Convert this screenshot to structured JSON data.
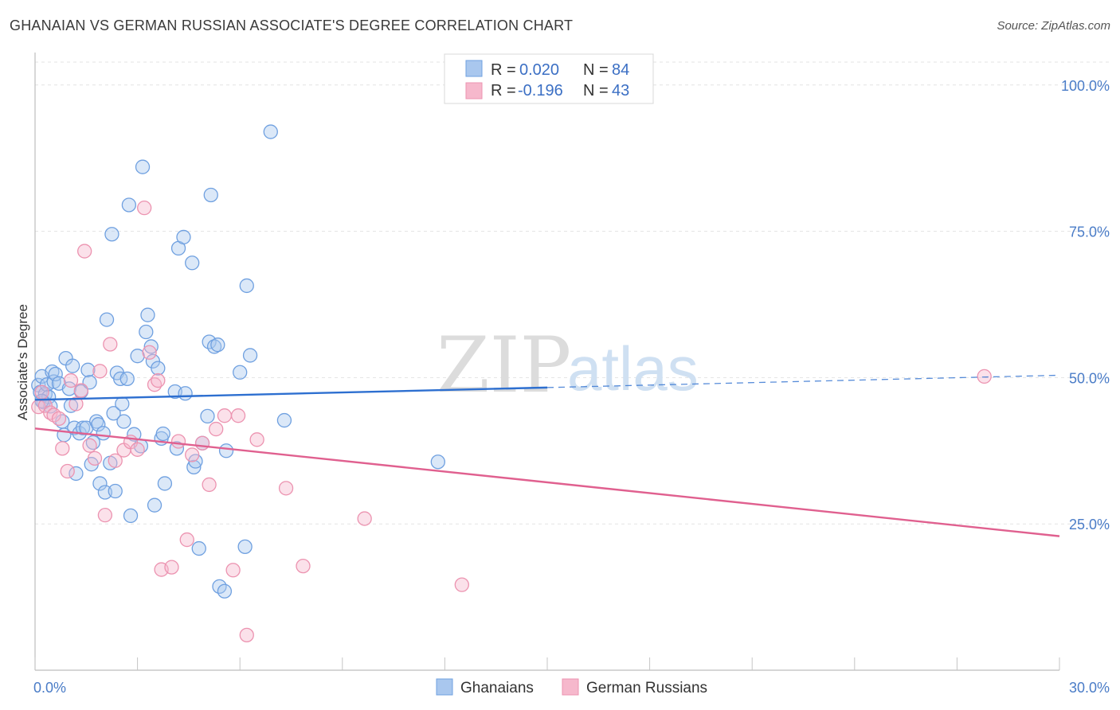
{
  "title": "GHANAIAN VS GERMAN RUSSIAN ASSOCIATE'S DEGREE CORRELATION CHART",
  "source": "Source: ZipAtlas.com",
  "watermark": {
    "zip": "ZIP",
    "atlas": "atlas"
  },
  "legend": {
    "rows": [
      {
        "r_label": "R =",
        "r_value": "0.020",
        "n_label": "N =",
        "n_value": "84",
        "color": "#a9c7ee"
      },
      {
        "r_label": "R =",
        "r_value": "-0.196",
        "n_label": "N =",
        "n_value": "43",
        "color": "#f6b8cc"
      }
    ]
  },
  "bottom_legend": [
    {
      "label": "Ghanaians",
      "color": "#a9c7ee"
    },
    {
      "label": "German Russians",
      "color": "#f6b8cc"
    }
  ],
  "chart_data": {
    "type": "scatter",
    "ylabel": "Associate's Degree",
    "xlim": [
      0,
      30
    ],
    "ylim": [
      0,
      105
    ],
    "x_tick_labels": [
      {
        "value": 0,
        "label": "0.0%"
      },
      {
        "value": 30,
        "label": "30.0%"
      }
    ],
    "y_tick_labels": [
      {
        "value": 25,
        "label": "25.0%"
      },
      {
        "value": 50,
        "label": "50.0%"
      },
      {
        "value": 75,
        "label": "75.0%"
      },
      {
        "value": 100,
        "label": "100.0%"
      }
    ],
    "grid": true,
    "legend_position": "top-center",
    "series": [
      {
        "name": "Ghanaians",
        "color": "#6fa0e0",
        "fill": "#a9c7ee",
        "trend": {
          "x0": 0,
          "y0": 46.2,
          "x1": 15,
          "y1": 48.3,
          "dash_to_x": 30,
          "dash_to_y": 50.4,
          "color": "#2d6fd0"
        },
        "points": [
          [
            0.1,
            48.7
          ],
          [
            0.15,
            47.5
          ],
          [
            0.2,
            50.2
          ],
          [
            0.25,
            45.8
          ],
          [
            0.3,
            47.2
          ],
          [
            0.35,
            48.8
          ],
          [
            0.4,
            46.7
          ],
          [
            0.45,
            45.1
          ],
          [
            0.5,
            51.0
          ],
          [
            0.55,
            49.3
          ],
          [
            0.6,
            50.6
          ],
          [
            0.7,
            49.0
          ],
          [
            0.8,
            42.5
          ],
          [
            0.85,
            40.2
          ],
          [
            0.9,
            53.3
          ],
          [
            1.0,
            48.1
          ],
          [
            1.05,
            45.2
          ],
          [
            1.1,
            52.0
          ],
          [
            1.15,
            41.4
          ],
          [
            1.2,
            33.6
          ],
          [
            1.3,
            40.5
          ],
          [
            1.35,
            47.6
          ],
          [
            1.4,
            41.4
          ],
          [
            1.5,
            41.4
          ],
          [
            1.55,
            51.3
          ],
          [
            1.6,
            49.2
          ],
          [
            1.65,
            35.2
          ],
          [
            1.7,
            38.9
          ],
          [
            1.8,
            42.5
          ],
          [
            1.85,
            42.0
          ],
          [
            1.9,
            31.9
          ],
          [
            2.0,
            40.5
          ],
          [
            2.05,
            30.4
          ],
          [
            2.1,
            59.9
          ],
          [
            2.2,
            35.4
          ],
          [
            2.25,
            74.5
          ],
          [
            2.3,
            43.9
          ],
          [
            2.35,
            30.6
          ],
          [
            2.4,
            50.8
          ],
          [
            2.5,
            49.8
          ],
          [
            2.55,
            45.5
          ],
          [
            2.6,
            42.5
          ],
          [
            2.7,
            49.8
          ],
          [
            2.75,
            79.5
          ],
          [
            2.8,
            26.4
          ],
          [
            2.9,
            40.3
          ],
          [
            3.0,
            53.7
          ],
          [
            3.1,
            38.3
          ],
          [
            3.15,
            86.0
          ],
          [
            3.25,
            57.8
          ],
          [
            3.3,
            60.7
          ],
          [
            3.4,
            55.3
          ],
          [
            3.45,
            52.8
          ],
          [
            3.5,
            28.2
          ],
          [
            3.6,
            51.6
          ],
          [
            3.7,
            39.6
          ],
          [
            3.75,
            40.4
          ],
          [
            3.8,
            31.9
          ],
          [
            4.1,
            47.6
          ],
          [
            4.15,
            37.9
          ],
          [
            4.2,
            72.1
          ],
          [
            4.35,
            74.0
          ],
          [
            4.4,
            47.3
          ],
          [
            4.6,
            69.6
          ],
          [
            4.65,
            34.7
          ],
          [
            4.7,
            35.7
          ],
          [
            4.8,
            20.8
          ],
          [
            4.9,
            38.8
          ],
          [
            5.05,
            43.4
          ],
          [
            5.1,
            56.1
          ],
          [
            5.15,
            81.2
          ],
          [
            5.25,
            55.3
          ],
          [
            5.35,
            55.6
          ],
          [
            5.4,
            14.3
          ],
          [
            5.55,
            13.5
          ],
          [
            5.6,
            37.5
          ],
          [
            6.0,
            50.9
          ],
          [
            6.15,
            21.1
          ],
          [
            6.2,
            65.7
          ],
          [
            6.3,
            53.8
          ],
          [
            6.9,
            92.0
          ],
          [
            7.3,
            42.7
          ],
          [
            11.8,
            35.6
          ],
          [
            0.2,
            46.0
          ]
        ]
      },
      {
        "name": "German Russians",
        "color": "#ec93b0",
        "fill": "#f6b8cc",
        "trend": {
          "x0": 0,
          "y0": 41.3,
          "x1": 30,
          "y1": 22.9,
          "color": "#e0608f"
        },
        "points": [
          [
            0.1,
            45.0
          ],
          [
            0.2,
            47.5
          ],
          [
            0.3,
            45.2
          ],
          [
            0.45,
            44.0
          ],
          [
            0.55,
            43.6
          ],
          [
            0.7,
            43.0
          ],
          [
            0.8,
            37.9
          ],
          [
            0.95,
            34.0
          ],
          [
            1.05,
            49.5
          ],
          [
            1.2,
            45.5
          ],
          [
            1.35,
            47.8
          ],
          [
            1.45,
            71.6
          ],
          [
            1.6,
            38.4
          ],
          [
            1.75,
            36.2
          ],
          [
            1.9,
            51.1
          ],
          [
            2.05,
            26.5
          ],
          [
            2.2,
            55.7
          ],
          [
            2.35,
            35.8
          ],
          [
            2.6,
            37.6
          ],
          [
            2.8,
            39.0
          ],
          [
            3.0,
            37.7
          ],
          [
            3.2,
            79.0
          ],
          [
            3.35,
            54.3
          ],
          [
            3.5,
            48.8
          ],
          [
            3.6,
            49.5
          ],
          [
            3.7,
            17.2
          ],
          [
            4.0,
            17.6
          ],
          [
            4.2,
            39.1
          ],
          [
            4.45,
            22.3
          ],
          [
            4.6,
            36.8
          ],
          [
            4.9,
            38.8
          ],
          [
            5.1,
            31.7
          ],
          [
            5.3,
            41.2
          ],
          [
            5.55,
            43.5
          ],
          [
            5.8,
            17.1
          ],
          [
            5.95,
            43.5
          ],
          [
            6.2,
            6.0
          ],
          [
            6.5,
            39.4
          ],
          [
            7.35,
            31.1
          ],
          [
            7.85,
            17.8
          ],
          [
            9.65,
            25.9
          ],
          [
            12.5,
            14.6
          ],
          [
            27.8,
            50.2
          ]
        ]
      }
    ]
  }
}
